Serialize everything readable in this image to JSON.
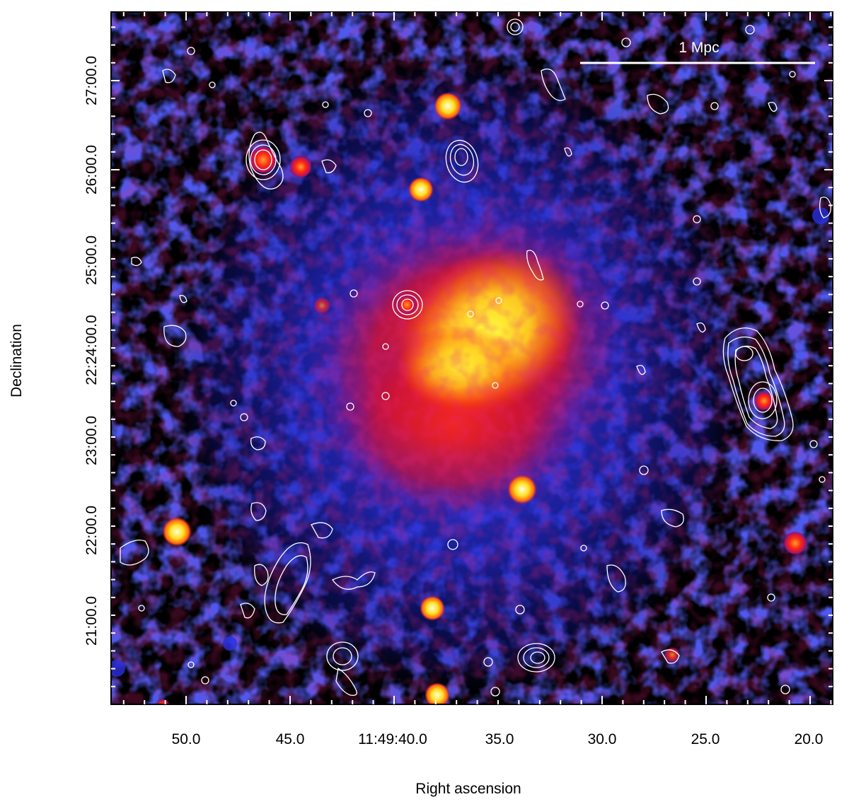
{
  "scale_bar": {
    "label": "1 Mpc"
  },
  "axes": {
    "xlabel": "Right ascension",
    "ylabel": "Declination",
    "x_ticks": [
      "50.0",
      "45.0",
      "11:49:40.0",
      "35.0",
      "30.0",
      "25.0",
      "20.0"
    ],
    "y_ticks": [
      "27:00.0",
      "26:00.0",
      "25:00.0",
      "22:24:00.0",
      "23:00.0",
      "22:00.0",
      "21:00.0"
    ]
  },
  "colors": {
    "background": "#000000",
    "diffuse_emission_outer": "#1f2ad8",
    "diffuse_emission_mid": "#e0102a",
    "diffuse_emission_core": "#ffff20",
    "contours": "#ffffff",
    "frame": "#000000"
  }
}
